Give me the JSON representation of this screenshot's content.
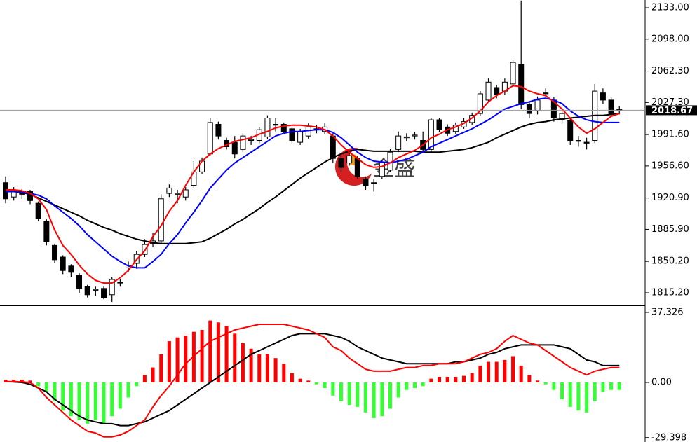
{
  "chart_data": [
    {
      "type": "candlestick",
      "open": [
        1938,
        1922,
        1928,
        1928,
        1915,
        1895,
        1868,
        1855,
        1845,
        1835,
        1822,
        1818,
        1820,
        1813,
        1827,
        1843,
        1848,
        1858,
        1870,
        1873,
        1926,
        1925,
        1922,
        1935,
        1950,
        1970,
        2003,
        1985,
        1983,
        1975,
        1985,
        1985,
        1989,
        2003,
        2003,
        1998,
        1983,
        1990,
        1998,
        1995,
        1990,
        1965,
        1960,
        1965,
        1942,
        1938,
        1945,
        1952,
        1975,
        1988,
        1990,
        1985,
        1975,
        2008,
        2000,
        1995,
        2000,
        2005,
        2015,
        2030,
        2044,
        2040,
        2048,
        2070,
        2025,
        2018,
        2038,
        2030,
        2008,
        2007,
        1985,
        1983,
        1985,
        2038,
        2030,
        2020
      ],
      "high": [
        1945,
        1933,
        1931,
        1930,
        1917,
        1897,
        1870,
        1857,
        1847,
        1837,
        1824,
        1822,
        1822,
        1833,
        1830,
        1850,
        1862,
        1875,
        1882,
        1925,
        1936,
        1930,
        1933,
        1962,
        1966,
        2010,
        2006,
        1988,
        1990,
        1993,
        1990,
        2000,
        2013,
        2010,
        2005,
        2000,
        1998,
        2004,
        2002,
        2004,
        1993,
        1968,
        1971,
        1968,
        1945,
        1942,
        1963,
        1976,
        1995,
        1993,
        1994,
        1995,
        2010,
        2010,
        2003,
        2005,
        2010,
        2016,
        2040,
        2054,
        2047,
        2054,
        2075,
        2141,
        2028,
        2034,
        2043,
        2033,
        2020,
        2010,
        1990,
        1988,
        2048,
        2043,
        2033,
        2023
      ],
      "low": [
        1915,
        1918,
        1920,
        1914,
        1895,
        1868,
        1848,
        1836,
        1833,
        1815,
        1810,
        1812,
        1808,
        1805,
        1822,
        1838,
        1842,
        1855,
        1866,
        1870,
        1922,
        1915,
        1918,
        1932,
        1948,
        1968,
        1986,
        1975,
        1965,
        1972,
        1980,
        1982,
        1987,
        1995,
        1992,
        1982,
        1980,
        1987,
        1993,
        1992,
        1960,
        1950,
        1957,
        1942,
        1930,
        1928,
        1942,
        1950,
        1972,
        1984,
        1986,
        1972,
        1972,
        1994,
        1990,
        1992,
        1998,
        2002,
        2012,
        2028,
        2032,
        2036,
        2046,
        2020,
        2010,
        2014,
        2032,
        2006,
        2004,
        1980,
        1978,
        1975,
        1982,
        2026,
        2012,
        2014
      ],
      "close": [
        1920,
        1930,
        1925,
        1918,
        1898,
        1872,
        1852,
        1840,
        1838,
        1820,
        1813,
        1819,
        1810,
        1830,
        1826,
        1846,
        1858,
        1869,
        1873,
        1920,
        1932,
        1926,
        1930,
        1950,
        1962,
        2005,
        1990,
        1978,
        1970,
        1990,
        1986,
        1997,
        2010,
        2002,
        1995,
        1985,
        1995,
        2000,
        1997,
        2000,
        1965,
        1955,
        1968,
        1945,
        1935,
        1937,
        1960,
        1972,
        1990,
        1989,
        1991,
        1975,
        2008,
        1997,
        1993,
        2002,
        2006,
        2013,
        2037,
        2050,
        2036,
        2050,
        2072,
        2025,
        2015,
        2030,
        2037,
        2010,
        2015,
        1985,
        1984,
        1982,
        2040,
        2030,
        2015,
        2018.67
      ],
      "up_color": "#ffffff",
      "down_color": "#000000",
      "series": [
        {
          "color": "#000000",
          "values": [
            1930,
            1929,
            1927,
            1925,
            1921,
            1917,
            1913,
            1909,
            1905,
            1901,
            1896,
            1892,
            1888,
            1885,
            1881,
            1878,
            1875,
            1873,
            1871,
            1870,
            1870,
            1870,
            1870,
            1871,
            1872,
            1876,
            1881,
            1886,
            1892,
            1897,
            1903,
            1909,
            1916,
            1922,
            1929,
            1936,
            1943,
            1949,
            1955,
            1961,
            1966,
            1970,
            1973,
            1975,
            1974,
            1973,
            1973,
            1973,
            1973,
            1973,
            1973,
            1972,
            1972,
            1972,
            1973,
            1974,
            1975,
            1977,
            1980,
            1983,
            1988,
            1992,
            1996,
            2000,
            2003,
            2005,
            2006,
            2008,
            2009,
            2010,
            2011,
            2012,
            2013,
            2013,
            2014,
            2015
          ]
        },
        {
          "color": "#0000ff",
          "values": [
            1928,
            1928,
            1927,
            1926,
            1924,
            1920,
            1912,
            1905,
            1898,
            1890,
            1880,
            1872,
            1864,
            1856,
            1850,
            1845,
            1843,
            1843,
            1850,
            1858,
            1870,
            1880,
            1893,
            1905,
            1918,
            1932,
            1942,
            1952,
            1960,
            1966,
            1972,
            1978,
            1984,
            1990,
            1993,
            1995,
            1995,
            1996,
            1997,
            1997,
            1994,
            1988,
            1980,
            1972,
            1966,
            1962,
            1961,
            1960,
            1962,
            1964,
            1968,
            1972,
            1978,
            1982,
            1986,
            1990,
            1994,
            1998,
            2003,
            2008,
            2014,
            2020,
            2023,
            2026,
            2028,
            2031,
            2032,
            2030,
            2026,
            2018,
            2012,
            2008,
            2006,
            2005,
            2005,
            2005
          ]
        },
        {
          "color": "#ff0000",
          "values": [
            1930,
            1930,
            1929,
            1926,
            1920,
            1908,
            1885,
            1868,
            1858,
            1846,
            1836,
            1829,
            1826,
            1826,
            1832,
            1840,
            1852,
            1862,
            1878,
            1890,
            1906,
            1918,
            1935,
            1950,
            1962,
            1970,
            1976,
            1980,
            1984,
            1986,
            1988,
            1992,
            1995,
            1999,
            2001,
            2002,
            2002,
            2001,
            2000,
            1997,
            1990,
            1980,
            1972,
            1965,
            1958,
            1955,
            1956,
            1960,
            1966,
            1970,
            1974,
            1980,
            1988,
            1992,
            1997,
            2000,
            2004,
            2010,
            2018,
            2028,
            2035,
            2040,
            2046,
            2045,
            2040,
            2037,
            2035,
            2028,
            2020,
            2010,
            2000,
            1993,
            1998,
            2005,
            2012,
            2015
          ]
        }
      ],
      "ylim": [
        1801.9,
        2141.6
      ],
      "yticks": [
        {
          "value": 2133,
          "label": "2133.00"
        },
        {
          "value": 2098,
          "label": "2098.00"
        },
        {
          "value": 2062.3,
          "label": "2062.30"
        },
        {
          "value": 2027.3,
          "label": "2027.30"
        },
        {
          "value": 1991.6,
          "label": "1991.60"
        },
        {
          "value": 1956.6,
          "label": "1956.60"
        },
        {
          "value": 1920.9,
          "label": "1920.90"
        },
        {
          "value": 1885.9,
          "label": "1885.90"
        },
        {
          "value": 1850.2,
          "label": "1850.20"
        },
        {
          "value": 1815.2,
          "label": "1815.20"
        }
      ],
      "last_price": 2018.67,
      "watermark": "金盛"
    },
    {
      "type": "macd",
      "values": [
        1.5,
        1.5,
        1.5,
        1,
        -2,
        -5,
        -10,
        -15,
        -18,
        -20,
        -22,
        -20,
        -22,
        -18,
        -14,
        -8,
        -2,
        4,
        8,
        15,
        22,
        24,
        25,
        27,
        28,
        33,
        32,
        30,
        26,
        21,
        18,
        15,
        15,
        13,
        10,
        5,
        2,
        1,
        -1,
        -3,
        -7,
        -10,
        -12,
        -13,
        -16,
        -19,
        -18,
        -14,
        -8,
        -4,
        -3,
        -2,
        2,
        3,
        3,
        3,
        3.5,
        5,
        9,
        11,
        11,
        12,
        14,
        9,
        4,
        1,
        -1,
        -4,
        -9,
        -13,
        -15,
        -16,
        -10,
        -5,
        -4,
        -4
      ],
      "positive_color": "#ff0000",
      "negative_color": "#33ff33",
      "series": [
        {
          "color": "#000000",
          "values": [
            0.5,
            0.3,
            0,
            -1,
            -3,
            -5,
            -9,
            -12,
            -15,
            -18,
            -20,
            -21,
            -22,
            -22,
            -23,
            -23,
            -22,
            -21,
            -19,
            -17,
            -15,
            -12,
            -9,
            -6,
            -3,
            0,
            3,
            6,
            9,
            12,
            15,
            17,
            19,
            21,
            23,
            25,
            26,
            26,
            26,
            26,
            25,
            24,
            22,
            19,
            17,
            15,
            13,
            12,
            11,
            10,
            10,
            10,
            10,
            10,
            10,
            11,
            11,
            12,
            13,
            15,
            16,
            18,
            19,
            20,
            20,
            20,
            20,
            20,
            19,
            18,
            15,
            12,
            11,
            9,
            9,
            9
          ]
        },
        {
          "color": "#ff0000",
          "values": [
            0.5,
            0.5,
            0.3,
            0,
            -3,
            -8,
            -12,
            -16,
            -20,
            -23,
            -26,
            -27,
            -29,
            -29,
            -28,
            -26,
            -23,
            -20,
            -13,
            -7,
            -2,
            4,
            10,
            14,
            18,
            22,
            24,
            26,
            28,
            29,
            30,
            31,
            31,
            31,
            31,
            30,
            29,
            28,
            26,
            24,
            19,
            17,
            13,
            10,
            7,
            6,
            6,
            6,
            7,
            8,
            8,
            9,
            9,
            10,
            10,
            10,
            11,
            13,
            15,
            16,
            18,
            22,
            25,
            23,
            21,
            20,
            17,
            14,
            11,
            8,
            6,
            4,
            6,
            7,
            8,
            8
          ]
        }
      ],
      "ylim": [
        -31.73,
        40.69
      ],
      "yticks": [
        37.326,
        {
          "value": 0,
          "label": "0.00"
        },
        -29.398
      ]
    }
  ]
}
